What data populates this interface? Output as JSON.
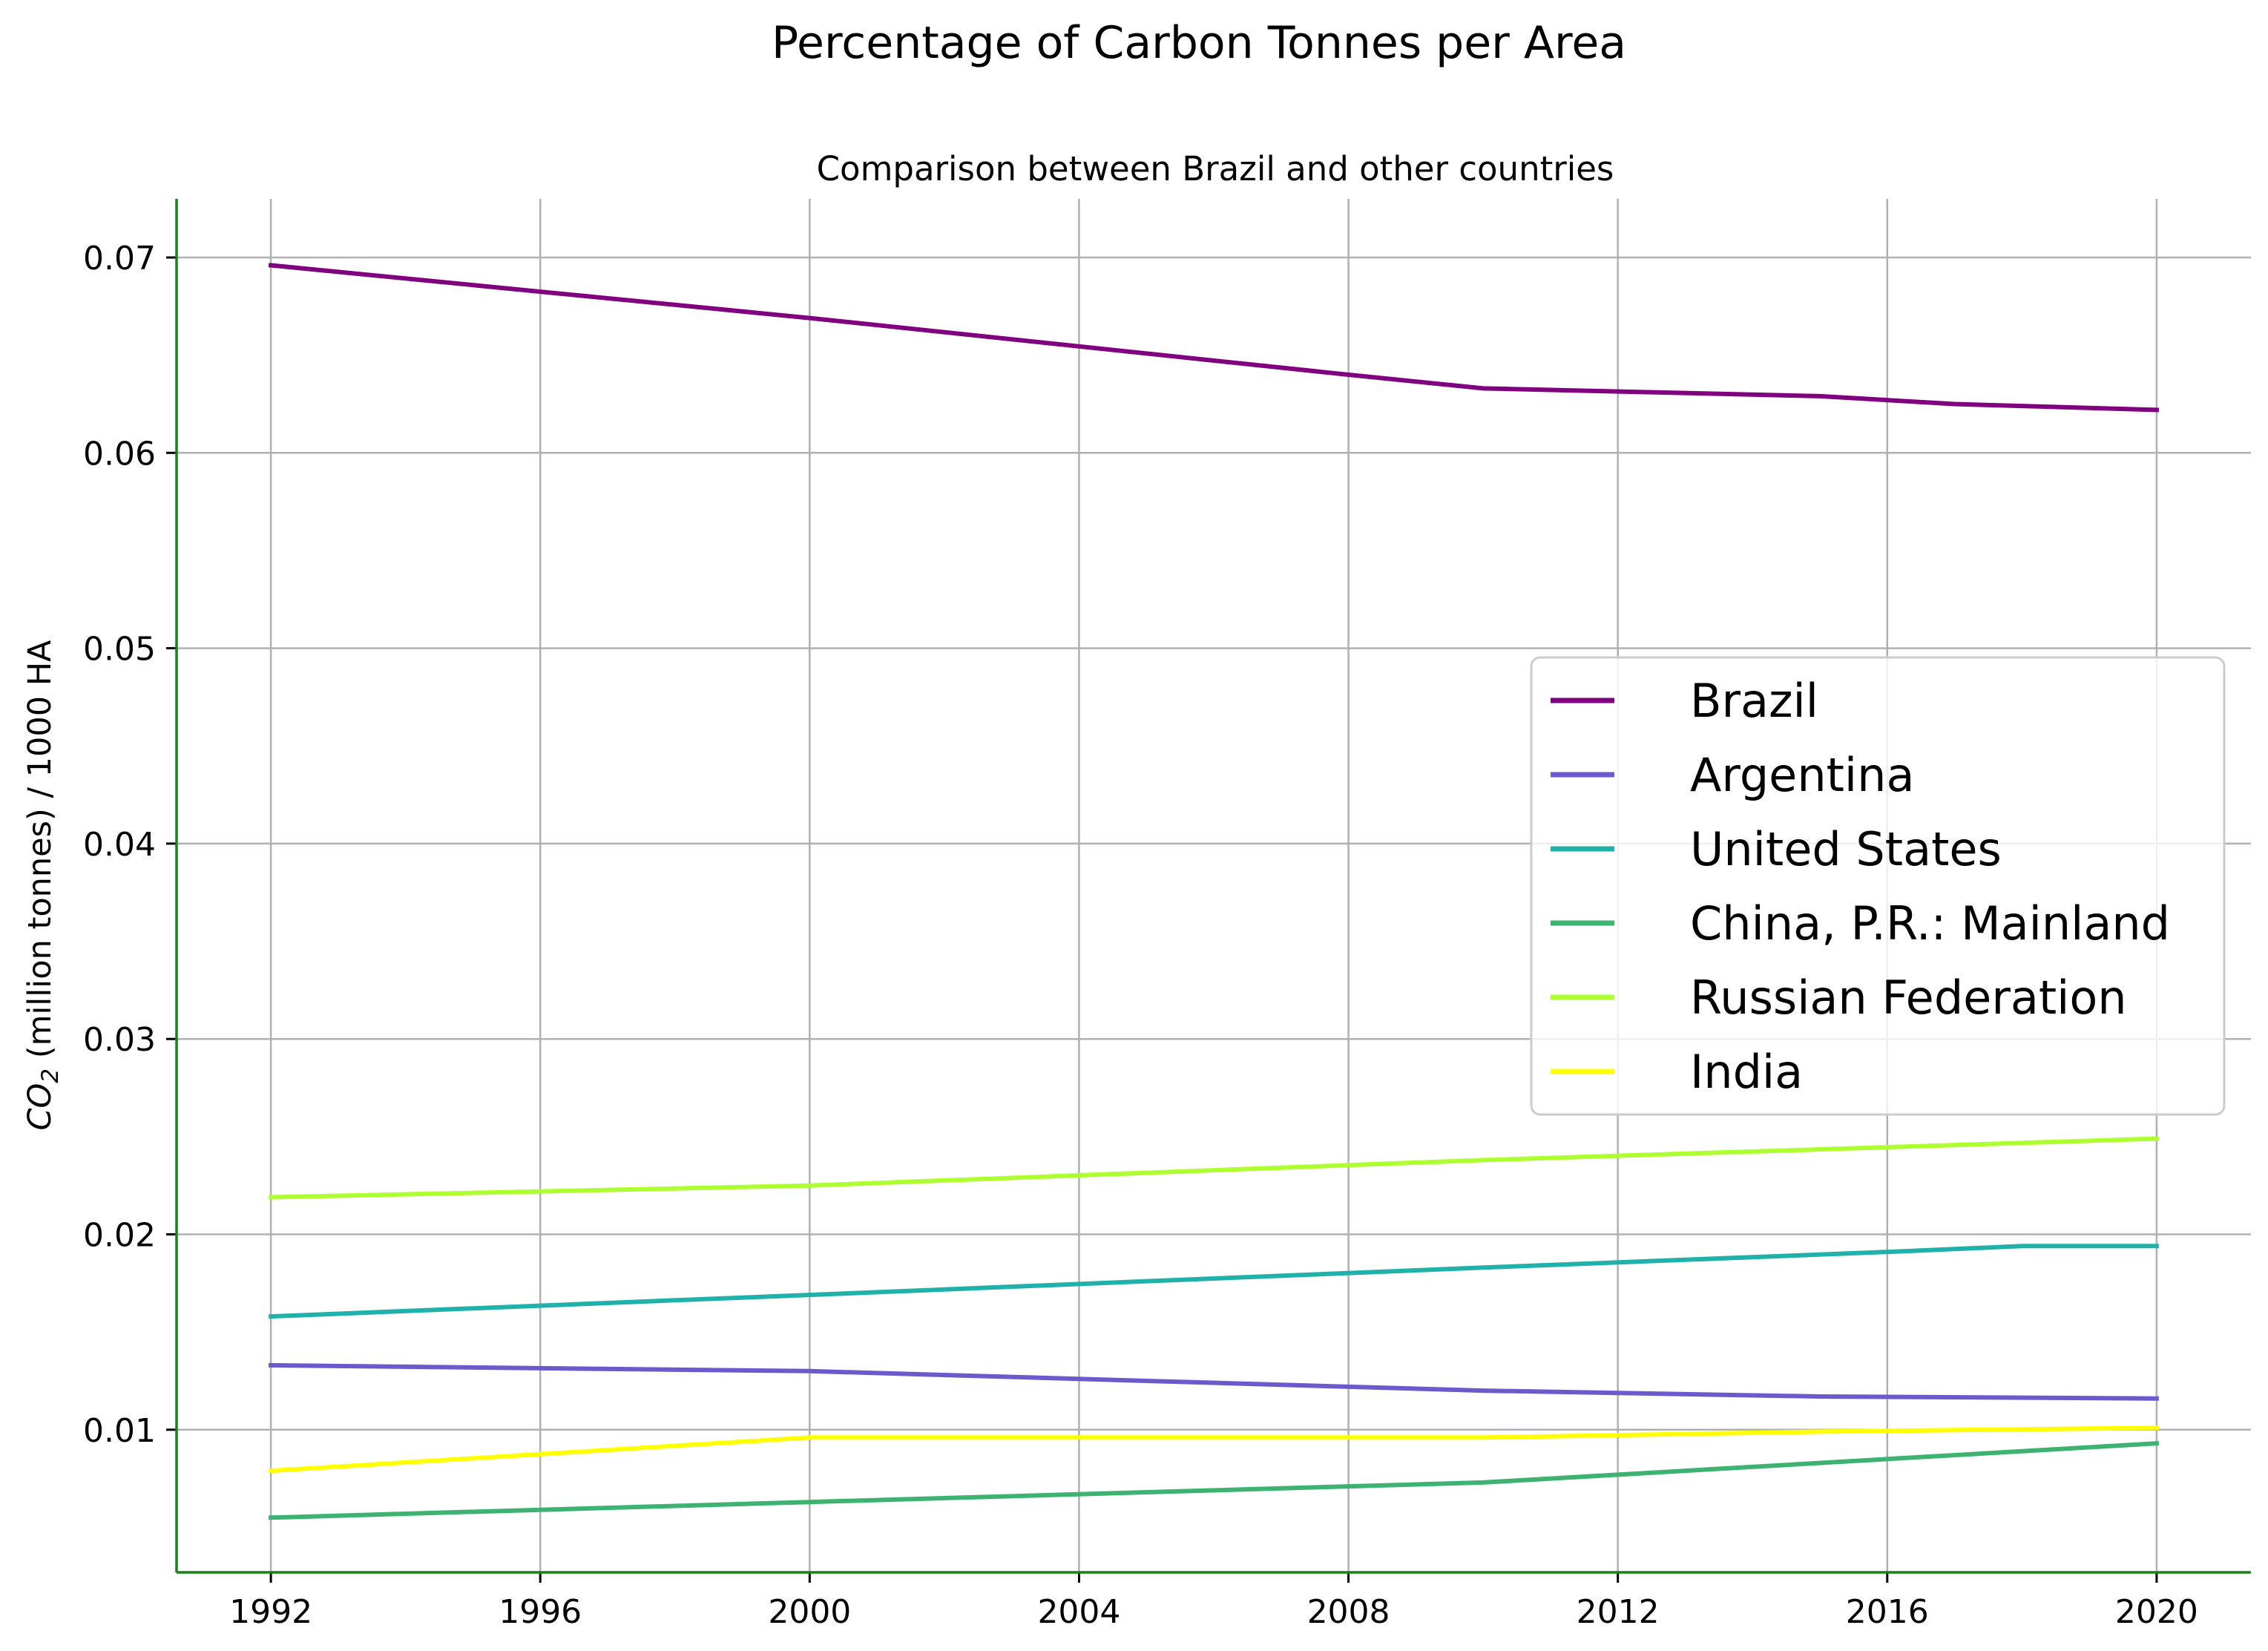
{
  "chart_data": {
    "type": "line",
    "title": "Percentage of Carbon Tonnes per Area",
    "subtitle": "Comparison between Brazil and other countries",
    "xlabel": "",
    "ylabel": "CO₂ (million tonnes) / 1000 HA",
    "ylabel_parts": {
      "co": "CO",
      "sub": "2",
      "rest": " (million tonnes) / 1000 HA"
    },
    "xlim": [
      1990.6,
      2021.4
    ],
    "ylim": [
      0.0027,
      0.073
    ],
    "xticks": [
      1992,
      1996,
      2000,
      2004,
      2008,
      2012,
      2016,
      2020
    ],
    "yticks": [
      0.01,
      0.02,
      0.03,
      0.04,
      0.05,
      0.06,
      0.07
    ],
    "ytick_labels": [
      "0.01",
      "0.02",
      "0.03",
      "0.04",
      "0.05",
      "0.06",
      "0.07"
    ],
    "grid": true,
    "legend_position": "center-right",
    "axis_color": "#1a801a",
    "series": [
      {
        "name": "Brazil",
        "color": "#800080",
        "x": [
          1992,
          2000,
          2008,
          2010,
          2015,
          2017,
          2020
        ],
        "y": [
          0.0696,
          0.0669,
          0.064,
          0.0633,
          0.0629,
          0.0625,
          0.0622
        ]
      },
      {
        "name": "Argentina",
        "color": "#6a5acd",
        "x": [
          1992,
          2000,
          2010,
          2015,
          2020
        ],
        "y": [
          0.0133,
          0.013,
          0.012,
          0.0117,
          0.0116
        ]
      },
      {
        "name": "United States",
        "color": "#20b2aa",
        "x": [
          1992,
          2000,
          2010,
          2016,
          2018,
          2020
        ],
        "y": [
          0.0158,
          0.0169,
          0.0183,
          0.0191,
          0.0194,
          0.0194
        ]
      },
      {
        "name": "China, P.R.: Mainland",
        "color": "#3cb371",
        "x": [
          1992,
          2000,
          2010,
          2016,
          2020
        ],
        "y": [
          0.0055,
          0.0063,
          0.0073,
          0.0085,
          0.0093
        ]
      },
      {
        "name": "Russian Federation",
        "color": "#adff2f",
        "x": [
          1992,
          2000,
          2010,
          2020
        ],
        "y": [
          0.0219,
          0.0225,
          0.0238,
          0.0249
        ]
      },
      {
        "name": "India",
        "color": "#ffff00",
        "x": [
          1992,
          2000,
          2010,
          2015,
          2020
        ],
        "y": [
          0.0079,
          0.0096,
          0.0096,
          0.0099,
          0.0101
        ]
      }
    ]
  }
}
